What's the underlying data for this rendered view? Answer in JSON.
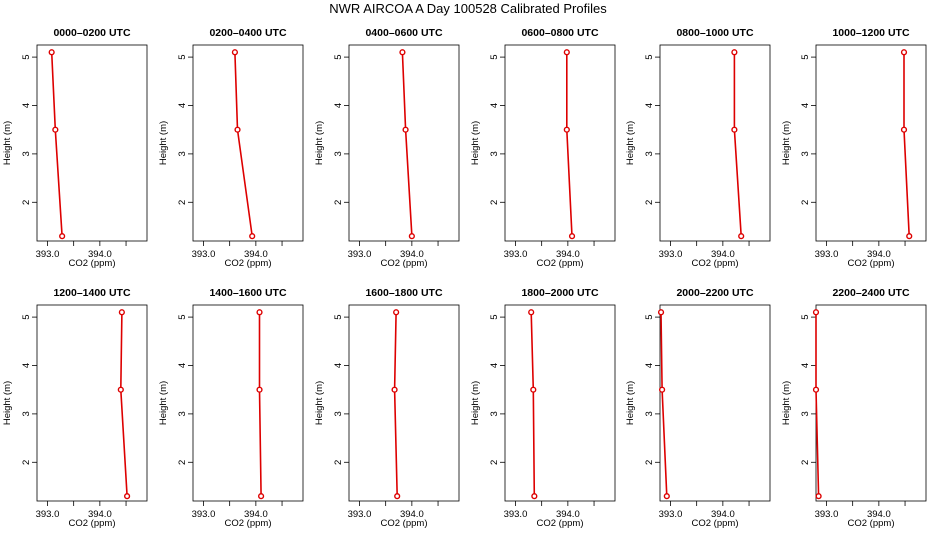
{
  "title": "NWR AIRCOA A  Day 100528  Calibrated Profiles",
  "colors": {
    "line": "#dd0000",
    "axis": "#000000"
  },
  "chart_data": {
    "type": "line",
    "xlabel": "CO2 (ppm)",
    "ylabel": "Height (m)",
    "xlim": [
      392.8,
      394.9
    ],
    "ylim": [
      1.2,
      5.25
    ],
    "x_ticks": [
      393.0,
      393.5,
      394.0,
      394.5
    ],
    "x_tick_labels": [
      "393.0",
      "",
      "394.0",
      ""
    ],
    "y_ticks": [
      2,
      3,
      4,
      5
    ],
    "y_tick_labels": [
      "2",
      "3",
      "4",
      "5"
    ],
    "heights": [
      5.1,
      3.5,
      1.3
    ],
    "panels": [
      {
        "title": "0000–0200 UTC",
        "x": [
          393.08,
          393.15,
          393.28
        ]
      },
      {
        "title": "0200–0400 UTC",
        "x": [
          393.6,
          393.65,
          393.93
        ]
      },
      {
        "title": "0400–0600 UTC",
        "x": [
          393.82,
          393.88,
          394.0
        ]
      },
      {
        "title": "0600–0800 UTC",
        "x": [
          393.98,
          393.98,
          394.08
        ]
      },
      {
        "title": "0800–1000 UTC",
        "x": [
          394.22,
          394.22,
          394.35
        ]
      },
      {
        "title": "1000–1200 UTC",
        "x": [
          394.48,
          394.48,
          394.58
        ]
      },
      {
        "title": "1200–1400 UTC",
        "x": [
          394.42,
          394.4,
          394.52
        ]
      },
      {
        "title": "1400–1600 UTC",
        "x": [
          394.07,
          394.07,
          394.1
        ]
      },
      {
        "title": "1600–1800 UTC",
        "x": [
          393.7,
          393.67,
          393.72
        ]
      },
      {
        "title": "1800–2000 UTC",
        "x": [
          393.3,
          393.34,
          393.36
        ]
      },
      {
        "title": "2000–2200 UTC",
        "x": [
          392.82,
          392.84,
          392.93
        ]
      },
      {
        "title": "2200–2400 UTC",
        "x": [
          392.8,
          392.8,
          392.85
        ]
      }
    ]
  }
}
